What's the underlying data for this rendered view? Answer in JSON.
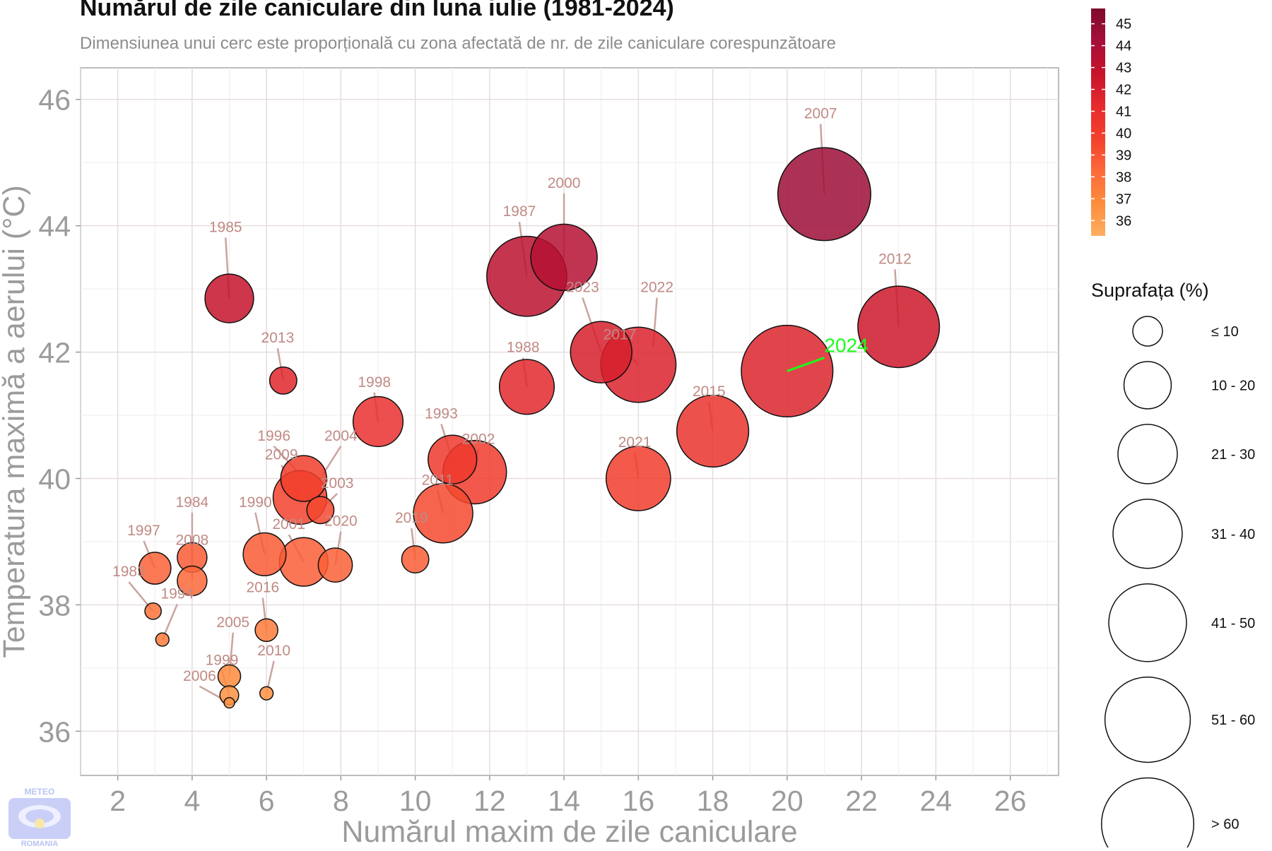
{
  "title": "Numărul de zile caniculare din luna iulie (1981-2024)",
  "subtitle": "Dimensiunea unui cerc este proporțională cu zona afectată de nr. de zile caniculare corespunzătoare",
  "logo": {
    "top_text": "METEO",
    "bottom_text": "ROMANIA"
  },
  "chart_data": {
    "type": "scatter",
    "title": "Numărul de zile caniculare din luna iulie (1981-2024)",
    "xlabel": "Numărul maxim de zile caniculare",
    "ylabel": "Temperatura maximă a aerului (°C)",
    "xlim": [
      1,
      27.3
    ],
    "ylim": [
      35.3,
      46.5
    ],
    "xticks": [
      2,
      4,
      6,
      8,
      10,
      12,
      14,
      16,
      18,
      20,
      22,
      24,
      26
    ],
    "yticks": [
      36,
      38,
      40,
      42,
      44,
      46
    ],
    "grid": true,
    "highlight_year": "2024",
    "highlight_color": "#19ff19",
    "points": [
      {
        "year": "2007",
        "x": 21,
        "y": 44.5,
        "area": 66,
        "lx": 20.9,
        "ly": 45.7
      },
      {
        "year": "2000",
        "x": 14,
        "y": 43.5,
        "area": 32,
        "lx": 14.0,
        "ly": 44.6
      },
      {
        "year": "1987",
        "x": 13,
        "y": 43.2,
        "area": 48,
        "lx": 12.8,
        "ly": 44.15
      },
      {
        "year": "1985",
        "x": 5,
        "y": 42.85,
        "area": 16,
        "lx": 4.9,
        "ly": 43.9
      },
      {
        "year": "2012",
        "x": 23,
        "y": 42.4,
        "area": 50,
        "lx": 22.9,
        "ly": 43.4
      },
      {
        "year": "2023",
        "x": 15,
        "y": 42.0,
        "area": 27,
        "lx": 14.5,
        "ly": 42.95
      },
      {
        "year": "2022",
        "x": 16.4,
        "y": 42.1,
        "area": 0,
        "lx": 16.5,
        "ly": 42.95
      },
      {
        "year": "2017",
        "x": 16,
        "y": 41.8,
        "area": 42,
        "lx": 15.5,
        "ly": 42.2
      },
      {
        "year": "2024",
        "x": 20,
        "y": 41.7,
        "area": 64,
        "lx": 21.0,
        "ly": 42.0,
        "highlight": true
      },
      {
        "year": "2013",
        "x": 6.45,
        "y": 41.55,
        "area": 4,
        "lx": 6.3,
        "ly": 42.15
      },
      {
        "year": "1988",
        "x": 13,
        "y": 41.45,
        "area": 21,
        "lx": 12.9,
        "ly": 42.0
      },
      {
        "year": "1998",
        "x": 9,
        "y": 40.9,
        "area": 17,
        "lx": 8.9,
        "ly": 41.45
      },
      {
        "year": "2015",
        "x": 18,
        "y": 40.75,
        "area": 38,
        "lx": 17.9,
        "ly": 41.3
      },
      {
        "year": "1993",
        "x": 11,
        "y": 40.3,
        "area": 16,
        "lx": 10.7,
        "ly": 40.95
      },
      {
        "year": "2002",
        "x": 11.6,
        "y": 40.1,
        "area": 29,
        "lx": 11.7,
        "ly": 40.55
      },
      {
        "year": "1996",
        "x": 7,
        "y": 40.0,
        "area": 14,
        "lx": 6.2,
        "ly": 40.6
      },
      {
        "year": "2004",
        "x": 7.5,
        "y": 40.05,
        "area": 0,
        "lx": 8.0,
        "ly": 40.6
      },
      {
        "year": "2021",
        "x": 16,
        "y": 40.0,
        "area": 30,
        "lx": 15.9,
        "ly": 40.5
      },
      {
        "year": "2009",
        "x": 6.9,
        "y": 39.7,
        "area": 20,
        "lx": 6.4,
        "ly": 40.3
      },
      {
        "year": "2003",
        "x": 7.45,
        "y": 39.5,
        "area": 4,
        "lx": 7.9,
        "ly": 39.85
      },
      {
        "year": "2011",
        "x": 10.75,
        "y": 39.45,
        "area": 25,
        "lx": 10.6,
        "ly": 39.9
      },
      {
        "year": "1984",
        "x": 4,
        "y": 38.75,
        "area": 5,
        "lx": 4.0,
        "ly": 39.55
      },
      {
        "year": "1990",
        "x": 5.95,
        "y": 38.8,
        "area": 12,
        "lx": 5.7,
        "ly": 39.55
      },
      {
        "year": "2019",
        "x": 10,
        "y": 38.72,
        "area": 4,
        "lx": 9.9,
        "ly": 39.3
      },
      {
        "year": "2001",
        "x": 7,
        "y": 38.68,
        "area": 16,
        "lx": 6.6,
        "ly": 39.2
      },
      {
        "year": "2020",
        "x": 7.85,
        "y": 38.63,
        "area": 7,
        "lx": 8.0,
        "ly": 39.25
      },
      {
        "year": "1997",
        "x": 3,
        "y": 38.58,
        "area": 6,
        "lx": 2.7,
        "ly": 39.1
      },
      {
        "year": "2008",
        "x": 4,
        "y": 38.38,
        "area": 5,
        "lx": 4.0,
        "ly": 38.95
      },
      {
        "year": "1983",
        "x": 2.95,
        "y": 37.9,
        "area": 1,
        "lx": 2.3,
        "ly": 38.45
      },
      {
        "year": "1994",
        "x": 3.2,
        "y": 37.45,
        "area": 0.5,
        "lx": 3.6,
        "ly": 38.1
      },
      {
        "year": "2016",
        "x": 6,
        "y": 37.6,
        "area": 2.5,
        "lx": 5.9,
        "ly": 38.2
      },
      {
        "year": "2005",
        "x": 5,
        "y": 36.87,
        "area": 2.5,
        "lx": 5.1,
        "ly": 37.65
      },
      {
        "year": "1999",
        "x": 5,
        "y": 36.57,
        "area": 1.5,
        "lx": 4.8,
        "ly": 37.05
      },
      {
        "year": "2010",
        "x": 6,
        "y": 36.6,
        "area": 0.5,
        "lx": 6.2,
        "ly": 37.2
      },
      {
        "year": "2006",
        "x": 5,
        "y": 36.45,
        "area": 0.2,
        "lx": 4.2,
        "ly": 36.8
      }
    ],
    "color_legend": {
      "values": [
        45,
        44,
        43,
        42,
        41,
        40,
        39,
        38,
        37,
        36
      ],
      "min": 35.3,
      "max": 45.7,
      "stops": [
        "#fdae61",
        "#fd8d3c",
        "#fc6a3a",
        "#f3402c",
        "#e62b2e",
        "#c7132a",
        "#a50f3a",
        "#7f0b2a"
      ]
    },
    "size_legend": {
      "title": "Suprafața (%)",
      "items": [
        {
          "label": "≤ 10",
          "area": 5
        },
        {
          "label": "10 - 20",
          "area": 15
        },
        {
          "label": "21 - 30",
          "area": 25
        },
        {
          "label": "31 - 40",
          "area": 35
        },
        {
          "label": "41 - 50",
          "area": 45
        },
        {
          "label": "51 - 60",
          "area": 55
        },
        {
          "label": "> 60",
          "area": 65
        }
      ]
    }
  }
}
